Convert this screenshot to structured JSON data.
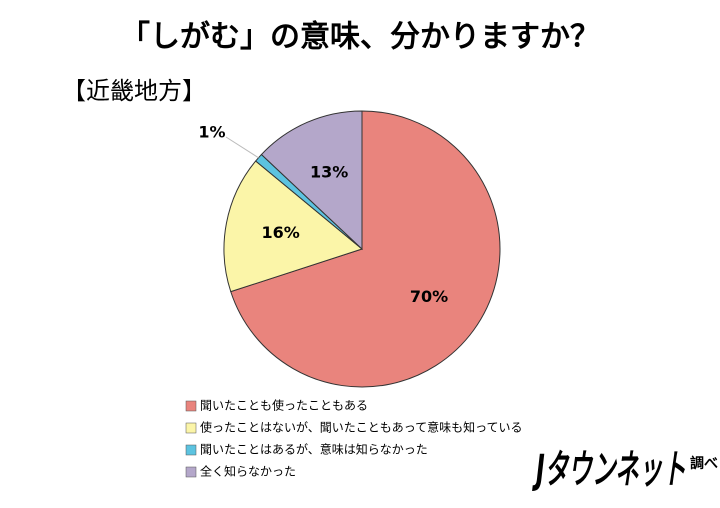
{
  "chart_data": {
    "type": "pie",
    "title": "「しがむ」の意味、分かりますか？",
    "subtitle": "【近畿地方】",
    "categories": [
      "聞いたことも使ったこともある",
      "使ったことはないが、聞いたこともあって意味も知っている",
      "聞いたことはあるが、意味は知らなかった",
      "全く知らなかった"
    ],
    "values": [
      70,
      16,
      1,
      13
    ],
    "value_labels": [
      "70%",
      "16%",
      "1%",
      "13%"
    ],
    "colors": [
      "#e9847d",
      "#fbf5a8",
      "#5cc3e0",
      "#b4a7ca"
    ],
    "logo": "Jタウンネット",
    "credit": "調べ"
  }
}
